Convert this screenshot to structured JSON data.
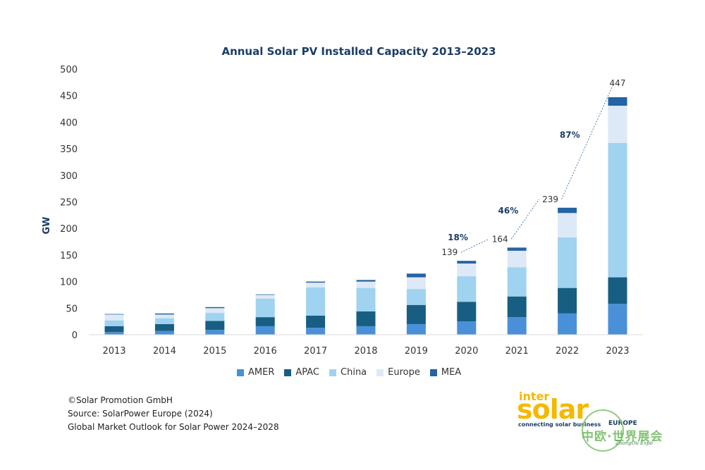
{
  "chart_data": {
    "type": "stacked-bar",
    "title": "Annual Solar PV Installed Capacity 2013–2023",
    "xlabel": "",
    "ylabel": "GW",
    "ylim": [
      0,
      500
    ],
    "yticks": [
      0,
      50,
      100,
      150,
      200,
      250,
      300,
      350,
      400,
      450,
      500
    ],
    "grid": false,
    "legend_position": "bottom",
    "categories": [
      "2013",
      "2014",
      "2015",
      "2016",
      "2017",
      "2018",
      "2019",
      "2020",
      "2021",
      "2022",
      "2023"
    ],
    "series": [
      {
        "name": "AMER",
        "color": "#4a90d9",
        "values": [
          5,
          7,
          9,
          16,
          13,
          16,
          20,
          25,
          33,
          40,
          58
        ]
      },
      {
        "name": "APAC",
        "color": "#175e82",
        "values": [
          11,
          13,
          17,
          17,
          23,
          28,
          36,
          37,
          39,
          48,
          50
        ]
      },
      {
        "name": "China",
        "color": "#9fd3ef",
        "values": [
          11,
          11,
          15,
          35,
          53,
          44,
          30,
          48,
          55,
          95,
          253
        ]
      },
      {
        "name": "Europe",
        "color": "#dde9f6",
        "values": [
          11,
          7,
          9,
          7,
          9,
          12,
          22,
          24,
          31,
          46,
          70
        ]
      },
      {
        "name": "MEA",
        "color": "#2463a4",
        "values": [
          1,
          2,
          2,
          1,
          2,
          3,
          7,
          5,
          6,
          10,
          16
        ]
      }
    ],
    "totals": [
      {
        "year": "2020",
        "label": "139",
        "value": 139
      },
      {
        "year": "2021",
        "label": "164",
        "value": 164
      },
      {
        "year": "2022",
        "label": "239",
        "value": 239
      },
      {
        "year": "2023",
        "label": "447",
        "value": 447
      }
    ],
    "growth": [
      {
        "from": "2020",
        "to": "2021",
        "label": "18%"
      },
      {
        "from": "2021",
        "to": "2022",
        "label": "46%"
      },
      {
        "from": "2022",
        "to": "2023",
        "label": "87%"
      }
    ]
  },
  "footer": {
    "copyright": "©Solar Promotion GmbH",
    "source": "Source: SolarPower Europe (2024)",
    "report": "Global Market Outlook for Solar Power 2024–2028"
  },
  "logo": {
    "inter": "inter",
    "solar": "solar",
    "tagline": "connecting solar business",
    "region": "EUROPE"
  },
  "watermark": {
    "text": "中欧·世界展会",
    "sub": "ZhongOu Expo"
  }
}
